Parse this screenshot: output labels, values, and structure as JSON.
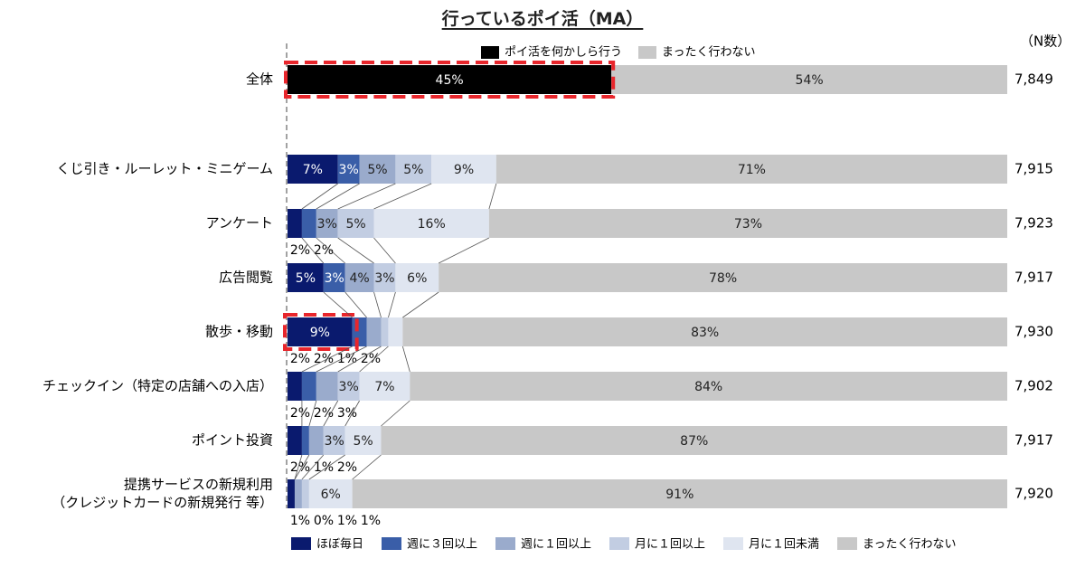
{
  "chart_data": {
    "type": "bar",
    "orientation": "horizontal",
    "stacked": true,
    "normalized": true,
    "title": "行っているポイ活（MA）",
    "n_header": "（N数）",
    "top_legend": [
      {
        "name": "ポイ活を何かしら行う",
        "color": "#000000"
      },
      {
        "name": "まったく行わない",
        "color": "#c8c8c8"
      }
    ],
    "overall": {
      "category": "全体",
      "values": [
        45,
        54
      ],
      "labels": [
        "45%",
        "54%"
      ],
      "n": "7,849",
      "highlighted": true
    },
    "series": [
      {
        "name": "ほぼ毎日",
        "color": "#0a1a6e"
      },
      {
        "name": "週に３回以上",
        "color": "#3a5ea8"
      },
      {
        "name": "週に１回以上",
        "color": "#9aabcc"
      },
      {
        "name": "月に１回以上",
        "color": "#c2cde2"
      },
      {
        "name": "月に１回未満",
        "color": "#dfe5f0"
      },
      {
        "name": "まったく行わない",
        "color": "#c8c8c8"
      }
    ],
    "categories": [
      {
        "label": [
          "くじ引き・ルーレット・ミニゲーム"
        ],
        "values": [
          7,
          3,
          5,
          5,
          9,
          71
        ],
        "inside": [
          "7%",
          "3%",
          "5%",
          "5%",
          "9%",
          "71%"
        ],
        "below": [
          "",
          "",
          "",
          "",
          "",
          ""
        ],
        "n": "7,915",
        "highlight": false
      },
      {
        "label": [
          "アンケート"
        ],
        "values": [
          2,
          2,
          3,
          5,
          16,
          73
        ],
        "inside": [
          "",
          "",
          "3%",
          "5%",
          "16%",
          "73%"
        ],
        "below": [
          "2%",
          "2%",
          "",
          "",
          "",
          ""
        ],
        "n": "7,923",
        "highlight": false
      },
      {
        "label": [
          "広告閲覧"
        ],
        "values": [
          5,
          3,
          4,
          3,
          6,
          78
        ],
        "inside": [
          "5%",
          "3%",
          "4%",
          "3%",
          "6%",
          "78%"
        ],
        "below": [
          "",
          "",
          "",
          "",
          "",
          ""
        ],
        "n": "7,917",
        "highlight": false
      },
      {
        "label": [
          "散歩・移動"
        ],
        "values": [
          9,
          2,
          2,
          1,
          2,
          83
        ],
        "inside": [
          "9%",
          "",
          "",
          "",
          "",
          "83%"
        ],
        "below": [
          "",
          "2%",
          "2%",
          "1%",
          "2%",
          ""
        ],
        "n": "7,930",
        "highlight": true
      },
      {
        "label": [
          "チェックイン（特定の店舗への入店）"
        ],
        "values": [
          2,
          2,
          3,
          3,
          7,
          84
        ],
        "inside": [
          "",
          "",
          "",
          "3%",
          "7%",
          "84%"
        ],
        "below": [
          "2%",
          "2%",
          "3%",
          "",
          "",
          ""
        ],
        "n": "7,902",
        "highlight": false
      },
      {
        "label": [
          "ポイント投資"
        ],
        "values": [
          2,
          1,
          2,
          3,
          5,
          87
        ],
        "inside": [
          "",
          "",
          "",
          "3%",
          "5%",
          "87%"
        ],
        "below": [
          "2%",
          "1%",
          "2%",
          "",
          "",
          ""
        ],
        "n": "7,917",
        "highlight": false
      },
      {
        "label": [
          "提携サービスの新規利用",
          "（クレジットカードの新規発行 等）"
        ],
        "values": [
          1,
          0,
          1,
          1,
          6,
          91
        ],
        "inside": [
          "",
          "",
          "",
          "",
          "6%",
          "91%"
        ],
        "below": [
          "1%",
          "0%",
          "1%",
          "1%",
          "",
          ""
        ],
        "n": "7,920",
        "highlight": false
      }
    ],
    "xlim": [
      0,
      100
    ],
    "grid": false,
    "legend_position": "bottom",
    "highlight_style": "red-dashed-box"
  }
}
